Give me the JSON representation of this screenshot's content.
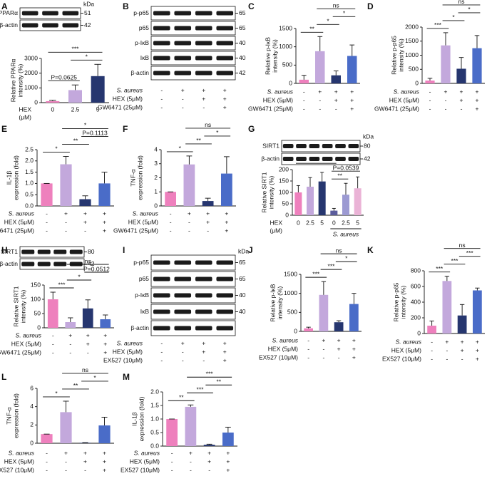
{
  "chart_data": [
    {
      "type": "bar",
      "panel": "A",
      "ylabel": [
        "Relative PPARα",
        "intensity (%)"
      ],
      "ylim": [
        0,
        3000
      ],
      "yticks": [
        0,
        1000,
        2000,
        3000
      ],
      "categories": [
        "0",
        "2.5",
        "5"
      ],
      "xlabel": [
        "HEX",
        "(μM)"
      ],
      "values": [
        100,
        850,
        1800
      ],
      "errors": [
        60,
        350,
        800
      ],
      "colors": [
        "#ee80bd",
        "#c3a8dc",
        "#26366f"
      ],
      "comparisons": [
        {
          "label": "P=0.0625",
          "groups": [
            0,
            1
          ]
        },
        {
          "label": "*",
          "groups": [
            1,
            2
          ]
        },
        {
          "label": "***",
          "groups": [
            0,
            2
          ]
        }
      ],
      "blot": {
        "kda_label": "kDa",
        "rows": [
          {
            "label": "PPARα",
            "kda": 51
          },
          {
            "label": "β-actin",
            "kda": 42
          }
        ]
      }
    },
    {
      "type": "blot",
      "panel": "B",
      "blot": {
        "rows": [
          {
            "label": "p-p65",
            "kda": 65
          },
          {
            "label": "p65",
            "kda": 65
          },
          {
            "label": "p-IκB",
            "kda": 40
          },
          {
            "label": "IκB",
            "kda": 40
          },
          {
            "label": "β-actin",
            "kda": 42
          }
        ]
      },
      "conditions": [
        {
          "label": "S. aureus",
          "italic": true,
          "marks": [
            "-",
            "+",
            "+",
            "+"
          ]
        },
        {
          "label": "HEX (5μM)",
          "marks": [
            "-",
            "-",
            "+",
            "+"
          ]
        },
        {
          "label": "GW6471 (25μM)",
          "marks": [
            "-",
            "-",
            "-",
            "+"
          ]
        }
      ]
    },
    {
      "type": "bar",
      "panel": "C",
      "ylabel": [
        "Relative p-IκB",
        "intensity (%)"
      ],
      "ylim": [
        0,
        1500
      ],
      "yticks": [
        0,
        500,
        1000,
        1500
      ],
      "values": [
        100,
        880,
        220,
        750
      ],
      "errors": [
        120,
        400,
        120,
        300
      ],
      "colors": [
        "#ee80bd",
        "#c3a8dc",
        "#26366f",
        "#4a6cc8"
      ],
      "comparisons": [
        {
          "label": "**",
          "groups": [
            0,
            1
          ]
        },
        {
          "label": "*",
          "groups": [
            1,
            2
          ]
        },
        {
          "label": "*",
          "groups": [
            2,
            3
          ]
        },
        {
          "label": "ns",
          "groups": [
            1,
            3
          ]
        }
      ],
      "conditions": [
        {
          "label": "S. aureus",
          "italic": true,
          "marks": [
            "-",
            "+",
            "+",
            "+"
          ]
        },
        {
          "label": "HEX (5μM)",
          "marks": [
            "-",
            "-",
            "+",
            "+"
          ]
        },
        {
          "label": "GW6471 (25μM)",
          "marks": [
            "-",
            "-",
            "-",
            "+"
          ]
        }
      ]
    },
    {
      "type": "bar",
      "panel": "D",
      "ylabel": [
        "Relative p-p65",
        "intensity (%)"
      ],
      "ylim": [
        0,
        2000
      ],
      "yticks": [
        0,
        500,
        1000,
        1500,
        2000
      ],
      "values": [
        100,
        1350,
        520,
        1250
      ],
      "errors": [
        80,
        450,
        400,
        450
      ],
      "colors": [
        "#ee80bd",
        "#c3a8dc",
        "#26366f",
        "#4a6cc8"
      ],
      "comparisons": [
        {
          "label": "***",
          "groups": [
            0,
            1
          ]
        },
        {
          "label": "*",
          "groups": [
            1,
            2
          ]
        },
        {
          "label": "*",
          "groups": [
            2,
            3
          ]
        },
        {
          "label": "ns",
          "groups": [
            1,
            3
          ]
        }
      ],
      "conditions": [
        {
          "label": "S. aureus",
          "italic": true,
          "marks": [
            "-",
            "+",
            "+",
            "+"
          ]
        },
        {
          "label": "HEX (5μM)",
          "marks": [
            "-",
            "-",
            "+",
            "+"
          ]
        },
        {
          "label": "GW6471 (25μM)",
          "marks": [
            "-",
            "-",
            "-",
            "+"
          ]
        }
      ]
    },
    {
      "type": "bar",
      "panel": "E",
      "ylabel": [
        "IL-1β",
        "expression (fold)"
      ],
      "ylim": [
        0,
        2.5
      ],
      "yticks": [
        {
          "value": 0,
          "label": "0.0"
        },
        {
          "value": 0.5,
          "label": "0.5"
        },
        {
          "value": 1,
          "label": "1.0"
        },
        {
          "value": 1.5,
          "label": "1.5"
        },
        {
          "value": 2,
          "label": "2.0"
        },
        {
          "value": 2.5,
          "label": "2.5"
        }
      ],
      "values": [
        1.0,
        1.85,
        0.3,
        1.0
      ],
      "errors": [
        0,
        0.35,
        0.15,
        0.5
      ],
      "colors": [
        "#ee80bd",
        "#c3a8dc",
        "#26366f",
        "#4a6cc8"
      ],
      "comparisons": [
        {
          "label": "*",
          "groups": [
            0,
            1
          ]
        },
        {
          "label": "**",
          "groups": [
            1,
            2
          ]
        },
        {
          "label": "P=0.1113",
          "groups": [
            2,
            3
          ]
        },
        {
          "label": "*",
          "groups": [
            1,
            3
          ]
        }
      ],
      "conditions": [
        {
          "label": "S. aureus",
          "italic": true,
          "marks": [
            "-",
            "+",
            "+",
            "+"
          ]
        },
        {
          "label": "HEX (5μM)",
          "marks": [
            "-",
            "-",
            "+",
            "+"
          ]
        },
        {
          "label": "GW6471 (25μM)",
          "marks": [
            "-",
            "-",
            "-",
            "+"
          ]
        }
      ]
    },
    {
      "type": "bar",
      "panel": "F",
      "ylabel": [
        "TNF-α",
        "expression (fold)"
      ],
      "ylim": [
        0,
        4
      ],
      "yticks": [
        0,
        1,
        2,
        3,
        4
      ],
      "values": [
        1,
        2.95,
        0.35,
        2.3
      ],
      "errors": [
        0,
        0.6,
        0.2,
        1.2
      ],
      "colors": [
        "#ee80bd",
        "#c3a8dc",
        "#26366f",
        "#4a6cc8"
      ],
      "comparisons": [
        {
          "label": "*",
          "groups": [
            0,
            1
          ]
        },
        {
          "label": "**",
          "groups": [
            1,
            2
          ]
        },
        {
          "label": "*",
          "groups": [
            2,
            3
          ]
        },
        {
          "label": "ns",
          "groups": [
            1,
            3
          ]
        }
      ],
      "conditions": [
        {
          "label": "S. aureus",
          "italic": true,
          "marks": [
            "-",
            "+",
            "+",
            "+"
          ]
        },
        {
          "label": "HEX (5μM)",
          "marks": [
            "-",
            "-",
            "+",
            "+"
          ]
        },
        {
          "label": "GW6471 (25μM)",
          "marks": [
            "-",
            "-",
            "-",
            "+"
          ]
        }
      ]
    },
    {
      "type": "bar",
      "panel": "G",
      "ylabel": [
        "Relative SIRT1",
        "intensity (%)"
      ],
      "ylim": [
        0,
        200
      ],
      "yticks": [
        0,
        50,
        100,
        150,
        200
      ],
      "categories": [
        "0",
        "2.5",
        "5",
        "0",
        "2.5",
        "5"
      ],
      "xlabel": [
        "HEX",
        "(μM)"
      ],
      "group_label": "S. aureus",
      "values": [
        100,
        125,
        148,
        20,
        90,
        118
      ],
      "errors": [
        30,
        40,
        40,
        10,
        50,
        50
      ],
      "colors": [
        "#ee80bd",
        "#c3a8dc",
        "#26366f",
        "#5b5c9c",
        "#9c9ad2",
        "#eab3d6"
      ],
      "comparisons": [
        {
          "label": "**",
          "groups": [
            3,
            4
          ]
        },
        {
          "label": "P=0.0539",
          "groups": [
            3,
            5
          ]
        },
        {
          "label": "*",
          "groups": [
            0,
            3
          ]
        }
      ],
      "blot": {
        "kda_label": "kDa",
        "rows": [
          {
            "label": "SIRT1",
            "kda": 80
          },
          {
            "label": "β-actin",
            "kda": 42
          }
        ]
      }
    },
    {
      "type": "bar",
      "panel": "H",
      "ylabel": [
        "Relative SIRT1",
        "intensity (%)"
      ],
      "ylim": [
        0,
        150
      ],
      "yticks": [
        0,
        50,
        100,
        150
      ],
      "values": [
        100,
        20,
        68,
        30
      ],
      "errors": [
        25,
        15,
        30,
        15
      ],
      "colors": [
        "#ee80bd",
        "#c3a8dc",
        "#26366f",
        "#4a6cc8"
      ],
      "comparisons": [
        {
          "label": "***",
          "groups": [
            0,
            1
          ]
        },
        {
          "label": "*",
          "groups": [
            1,
            2
          ]
        },
        {
          "label": "P=0.0512",
          "groups": [
            2,
            3
          ]
        },
        {
          "label": "ns",
          "groups": [
            1,
            3
          ]
        }
      ],
      "blot": {
        "rows": [
          {
            "label": "SIRT1",
            "kda": 80
          },
          {
            "label": "β-actin",
            "kda": 42
          }
        ]
      },
      "conditions": [
        {
          "label": "S. aureus",
          "italic": true,
          "marks": [
            "-",
            "+",
            "+",
            "+"
          ]
        },
        {
          "label": "HEX (5μM)",
          "marks": [
            "-",
            "-",
            "+",
            "+"
          ]
        },
        {
          "label": "GW6471 (25μM)",
          "marks": [
            "-",
            "-",
            "-",
            "+"
          ]
        }
      ]
    },
    {
      "type": "blot",
      "panel": "I",
      "blot": {
        "kda_label": "kDa",
        "rows": [
          {
            "label": "p-p65",
            "kda": 65
          },
          {
            "label": "p65",
            "kda": 65
          },
          {
            "label": "p-IκB",
            "kda": 40
          },
          {
            "label": "IκB",
            "kda": 40
          },
          {
            "label": "β-actin"
          }
        ]
      },
      "conditions": [
        {
          "label": "S. aureus",
          "italic": true,
          "marks": [
            "-",
            "+",
            "+",
            "+"
          ]
        },
        {
          "label": "HEX (5μM)",
          "marks": [
            "-",
            "-",
            "+",
            "+"
          ]
        },
        {
          "label": "EX527 (10μM)",
          "marks": [
            "-",
            "-",
            "-",
            "+"
          ]
        }
      ]
    },
    {
      "type": "bar",
      "panel": "J",
      "ylabel": [
        "Relative p-IκB",
        "intensity (%)"
      ],
      "ylim": [
        0,
        1500
      ],
      "yticks": [
        0,
        500,
        1000,
        1500
      ],
      "values": [
        80,
        960,
        240,
        720
      ],
      "errors": [
        30,
        350,
        40,
        280
      ],
      "colors": [
        "#ee80bd",
        "#c3a8dc",
        "#26366f",
        "#4a6cc8"
      ],
      "comparisons": [
        {
          "label": "***",
          "groups": [
            0,
            1
          ]
        },
        {
          "label": "***",
          "groups": [
            1,
            2
          ]
        },
        {
          "label": "*",
          "groups": [
            2,
            3
          ]
        },
        {
          "label": "ns",
          "groups": [
            1,
            3
          ]
        }
      ],
      "conditions": [
        {
          "label": "S. aureus",
          "italic": true,
          "marks": [
            "-",
            "+",
            "+",
            "+"
          ]
        },
        {
          "label": "HEX (5μM)",
          "marks": [
            "-",
            "-",
            "+",
            "+"
          ]
        },
        {
          "label": "EX527 (10μM)",
          "marks": [
            "-",
            "-",
            "-",
            "+"
          ]
        }
      ]
    },
    {
      "type": "bar",
      "panel": "K",
      "ylabel": [
        "Relative p-p65",
        "intensity (%)"
      ],
      "ylim": [
        0,
        800
      ],
      "yticks": [
        0,
        200,
        400,
        600,
        800
      ],
      "values": [
        100,
        670,
        230,
        550
      ],
      "errors": [
        60,
        60,
        140,
        30
      ],
      "colors": [
        "#ee80bd",
        "#c3a8dc",
        "#26366f",
        "#4a6cc8"
      ],
      "comparisons": [
        {
          "label": "***",
          "groups": [
            0,
            1
          ]
        },
        {
          "label": "***",
          "groups": [
            1,
            2
          ]
        },
        {
          "label": "***",
          "groups": [
            2,
            3
          ]
        },
        {
          "label": "ns",
          "groups": [
            1,
            3
          ]
        }
      ],
      "conditions": [
        {
          "label": "S. aureus",
          "italic": true,
          "marks": [
            "-",
            "+",
            "+",
            "+"
          ]
        },
        {
          "label": "HEX (5μM)",
          "marks": [
            "-",
            "-",
            "+",
            "+"
          ]
        },
        {
          "label": "EX527 (10μM)",
          "marks": [
            "-",
            "-",
            "-",
            "+"
          ]
        }
      ]
    },
    {
      "type": "bar",
      "panel": "L",
      "ylabel": [
        "TNF-α",
        "expression (fold)"
      ],
      "ylim": [
        0,
        6
      ],
      "yticks": [
        0,
        2,
        4,
        6
      ],
      "values": [
        1,
        3.4,
        0.05,
        1.95
      ],
      "errors": [
        0,
        1.2,
        0.02,
        0.9
      ],
      "colors": [
        "#ee80bd",
        "#c3a8dc",
        "#26366f",
        "#4a6cc8"
      ],
      "comparisons": [
        {
          "label": "*",
          "groups": [
            0,
            1
          ]
        },
        {
          "label": "**",
          "groups": [
            1,
            2
          ]
        },
        {
          "label": "*",
          "groups": [
            2,
            3
          ]
        },
        {
          "label": "ns",
          "groups": [
            1,
            3
          ]
        }
      ],
      "conditions": [
        {
          "label": "S. aureus",
          "italic": true,
          "marks": [
            "-",
            "+",
            "+",
            "+"
          ]
        },
        {
          "label": "HEX (5μM)",
          "marks": [
            "-",
            "-",
            "+",
            "+"
          ]
        },
        {
          "label": "EX527 (10μM)",
          "marks": [
            "-",
            "-",
            "-",
            "+"
          ]
        }
      ]
    },
    {
      "type": "bar",
      "panel": "M",
      "ylabel": [
        "IL-1β",
        "expression (fold)"
      ],
      "ylim": [
        0,
        2
      ],
      "yticks": [
        {
          "value": 0,
          "label": "0.0"
        },
        {
          "value": 0.5,
          "label": "0.5"
        },
        {
          "value": 1,
          "label": "1.0"
        },
        {
          "value": 1.5,
          "label": "1.5"
        },
        {
          "value": 2,
          "label": "2.0"
        }
      ],
      "values": [
        1,
        1.45,
        0.05,
        0.5
      ],
      "errors": [
        0,
        0.07,
        0.02,
        0.2
      ],
      "colors": [
        "#ee80bd",
        "#c3a8dc",
        "#26366f",
        "#4a6cc8"
      ],
      "comparisons": [
        {
          "label": "**",
          "groups": [
            0,
            1
          ]
        },
        {
          "label": "***",
          "groups": [
            1,
            2
          ]
        },
        {
          "label": "**",
          "groups": [
            2,
            3
          ]
        },
        {
          "label": "***",
          "groups": [
            1,
            3
          ]
        }
      ],
      "conditions": [
        {
          "label": "S. aureus",
          "italic": true,
          "marks": [
            "-",
            "+",
            "+",
            "+"
          ]
        },
        {
          "label": "HEX (5μM)",
          "marks": [
            "-",
            "-",
            "+",
            "+"
          ]
        },
        {
          "label": "EX527 (10μM)",
          "marks": [
            "-",
            "-",
            "-",
            "+"
          ]
        }
      ]
    }
  ]
}
